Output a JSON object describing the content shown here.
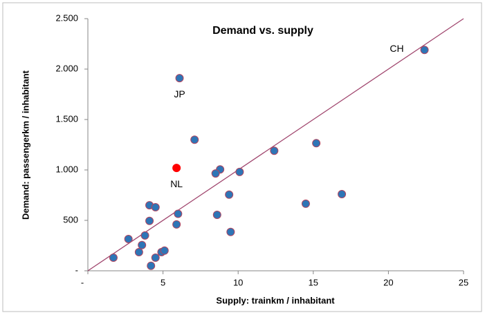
{
  "chart_data": {
    "type": "scatter",
    "title": "Demand vs. supply",
    "x_label": "Supply: trainkm / inhabitant",
    "y_label": "Demand: passengerkm / inhabitant",
    "x": [
      22.4,
      6.1,
      7.1,
      5.9,
      8.8,
      8.5,
      10.1,
      12.4,
      15.2,
      9.4,
      14.5,
      16.9,
      4.1,
      4.5,
      4.1,
      6.0,
      8.6,
      5.9,
      9.5,
      2.7,
      3.8,
      3.6,
      3.4,
      1.7,
      4.5,
      4.9,
      5.1,
      4.2
    ],
    "y": [
      2190,
      1910,
      1300,
      1020,
      1005,
      965,
      980,
      1190,
      1265,
      755,
      665,
      760,
      650,
      630,
      495,
      565,
      555,
      460,
      385,
      315,
      350,
      255,
      185,
      130,
      130,
      185,
      200,
      50
    ],
    "color": "#2e75b6",
    "highlight": {
      "index": 3,
      "color": "#ff0000"
    },
    "annotations": [
      {
        "text": "CH",
        "index": 0
      },
      {
        "text": "JP",
        "index": 1
      },
      {
        "text": "NL",
        "index": 3
      }
    ],
    "trendline": {
      "x": [
        0,
        25
      ],
      "y": [
        0,
        2500
      ],
      "color": "#a0466e"
    },
    "xlim": [
      0,
      25
    ],
    "ylim": [
      0,
      2500
    ],
    "xticks": [
      {
        "value": 0,
        "label": "-"
      },
      5,
      10,
      15,
      20,
      25
    ],
    "yticks": [
      {
        "value": 0,
        "label": "-"
      },
      500,
      {
        "value": 1000,
        "label": "1.000"
      },
      {
        "value": 1500,
        "label": "1.500"
      },
      {
        "value": 2000,
        "label": "2.000"
      },
      {
        "value": 2500,
        "label": "2.500"
      }
    ]
  }
}
